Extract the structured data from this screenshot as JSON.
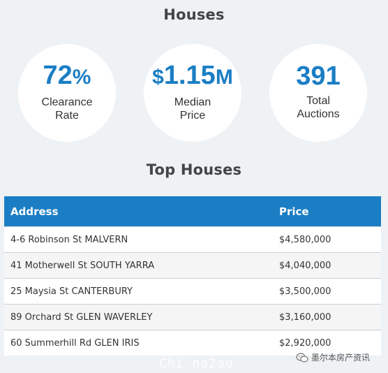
{
  "houses_title": "Houses",
  "stats": [
    {
      "value": "72",
      "unit": "%",
      "label_line1": "Clearance",
      "label_line2": "Rate"
    },
    {
      "value_prefix": "$",
      "value": "1.15",
      "unit": "M",
      "label_line1": "Median",
      "label_line2": "Price"
    },
    {
      "value": "391",
      "label_line1": "Total",
      "label_line2": "Auctions"
    }
  ],
  "top_title": "Top Houses",
  "table": {
    "headers": {
      "address": "Address",
      "price": "Price"
    },
    "rows": [
      {
        "address": "4-6 Robinson St MALVERN",
        "price": "$4,580,000"
      },
      {
        "address": "41 Motherwell St SOUTH YARRA",
        "price": "$4,040,000"
      },
      {
        "address": "25 Maysia St CANTERBURY",
        "price": "$3,500,000"
      },
      {
        "address": "89 Orchard St GLEN WAVERLEY",
        "price": "$3,160,000"
      },
      {
        "address": "60 Summerhill Rd GLEN IRIS",
        "price": "$2,920,000"
      }
    ]
  },
  "watermark": "Chi na2au",
  "wechat_label": "墨尔本房产资讯",
  "colors": {
    "accent": "#1b7ec4",
    "background": "#eef2f5"
  }
}
